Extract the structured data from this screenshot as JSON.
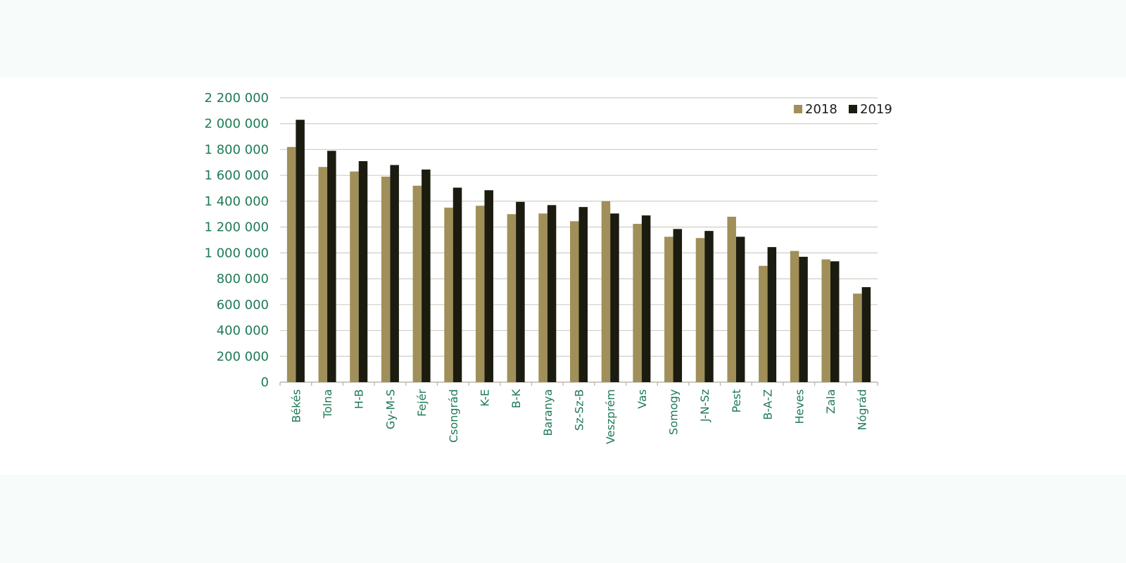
{
  "chart_data": {
    "type": "bar",
    "categories": [
      "Békés",
      "Tolna",
      "H-B",
      "Gy-M-S",
      "Fejér",
      "Csongrád",
      "K-E",
      "B-K",
      "Baranya",
      "Sz-Sz-B",
      "Veszprém",
      "Vas",
      "Somogy",
      "J-N-Sz",
      "Pest",
      "B-A-Z",
      "Heves",
      "Zala",
      "Nógrád"
    ],
    "series": [
      {
        "name": "2018",
        "color": "#a08f58",
        "values": [
          1820000,
          1665000,
          1630000,
          1590000,
          1520000,
          1350000,
          1365000,
          1300000,
          1305000,
          1245000,
          1400000,
          1225000,
          1125000,
          1115000,
          1280000,
          900000,
          1015000,
          950000,
          685000
        ]
      },
      {
        "name": "2019",
        "color": "#1b1b10",
        "values": [
          2030000,
          1790000,
          1710000,
          1680000,
          1645000,
          1505000,
          1485000,
          1395000,
          1370000,
          1355000,
          1305000,
          1290000,
          1185000,
          1170000,
          1125000,
          1045000,
          970000,
          935000,
          735000
        ]
      }
    ],
    "yticks": [
      "0",
      "200 000",
      "400 000",
      "600 000",
      "800 000",
      "1 000 000",
      "1 200 000",
      "1 400 000",
      "1 600 000",
      "1 800 000",
      "2 000 000",
      "2 200 000"
    ],
    "ylim": [
      0,
      2200000
    ],
    "grid": true,
    "legend_position": "top-right",
    "title": "",
    "xlabel": "",
    "ylabel": ""
  },
  "colors": {
    "tick_text": "#1f7a55",
    "grid": "#cfcfc3"
  }
}
